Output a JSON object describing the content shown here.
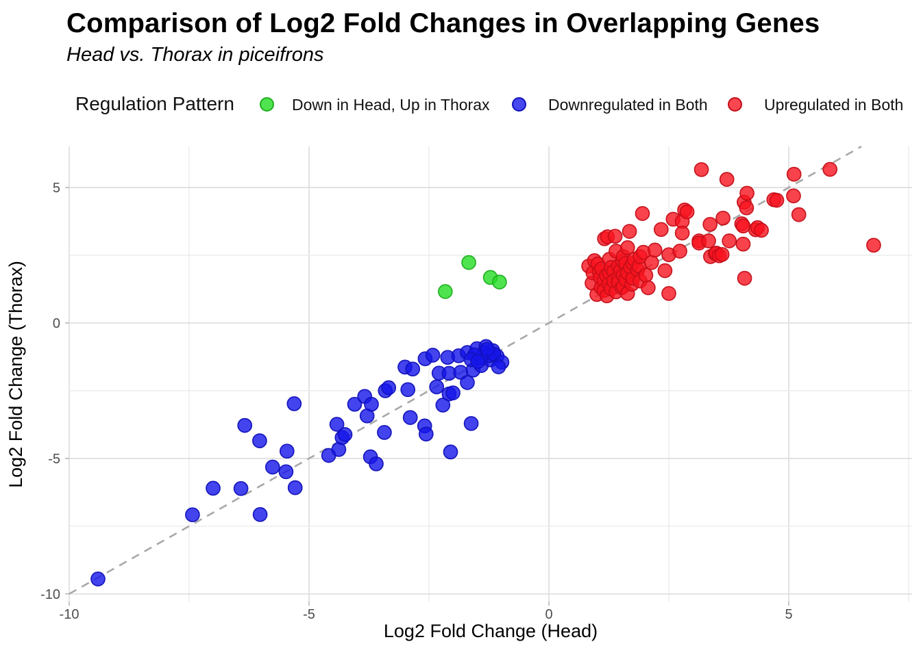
{
  "chart": {
    "title": "Comparison of Log2 Fold Changes in Overlapping Genes",
    "subtitle": "Head vs. Thorax in piceifrons",
    "xlabel": "Log2 Fold Change (Head)",
    "ylabel": "Log2 Fold Change (Thorax)",
    "legend_title": "Regulation Pattern"
  },
  "chart_data": {
    "type": "scatter",
    "title": "Comparison of Log2 Fold Changes in Overlapping Genes",
    "subtitle": "Head vs. Thorax in piceifrons",
    "xlabel": "Log2 Fold Change (Head)",
    "ylabel": "Log2 Fold Change (Thorax)",
    "legend": {
      "title": "Regulation Pattern",
      "position": "top"
    },
    "axes": {
      "xlim": [
        -10.0,
        7.571
      ],
      "ylim": [
        -10.283,
        6.515
      ],
      "x_ticks": [
        -10,
        -5,
        0,
        5
      ],
      "y_ticks": [
        5,
        0,
        -5,
        -10
      ],
      "x_gridlines": [
        -10,
        -7.5,
        -5,
        -2.5,
        0,
        2.5,
        5,
        7.5
      ],
      "y_gridlines": [
        5,
        2.5,
        0,
        -2.5,
        -5,
        -7.5,
        -10
      ],
      "grid_color": "#e4e4e4",
      "tick_text_color": "#4d4d4d"
    },
    "identity_line": {
      "slope": 1,
      "intercept": 0,
      "style": "dashed",
      "color": "#a8a8a8"
    },
    "marker": {
      "radius_px": 10,
      "fill_opacity": 0.8,
      "stroke_opacity": 0.95,
      "stroke_width": 1.7
    },
    "series": [
      {
        "name": "Down in Head, Up in Thorax",
        "color": "#24DC24",
        "edge": "#1FAE1F",
        "legend_fill": "#4FE44F",
        "points": [
          [
            -2.16,
            1.16
          ],
          [
            -1.67,
            2.23
          ],
          [
            -1.22,
            1.68
          ],
          [
            -1.03,
            1.51
          ]
        ]
      },
      {
        "name": "Downregulated in Both",
        "color": "#1515EA",
        "edge": "#1111BB",
        "legend_fill": "#4747F0",
        "points": [
          [
            -9.4,
            -9.45
          ],
          [
            -7.43,
            -7.08
          ],
          [
            -7.0,
            -6.1
          ],
          [
            -6.42,
            -6.11
          ],
          [
            -6.34,
            -3.78
          ],
          [
            -6.03,
            -4.35
          ],
          [
            -6.02,
            -7.07
          ],
          [
            -5.76,
            -5.32
          ],
          [
            -5.48,
            -5.49
          ],
          [
            -5.46,
            -4.73
          ],
          [
            -5.31,
            -2.98
          ],
          [
            -5.29,
            -6.08
          ],
          [
            -4.59,
            -4.89
          ],
          [
            -4.42,
            -3.74
          ],
          [
            -4.38,
            -4.67
          ],
          [
            -4.31,
            -4.23
          ],
          [
            -4.25,
            -4.12
          ],
          [
            -4.05,
            -3.0
          ],
          [
            -3.84,
            -2.71
          ],
          [
            -3.79,
            -3.43
          ],
          [
            -3.72,
            -4.94
          ],
          [
            -3.7,
            -3.0
          ],
          [
            -3.6,
            -5.2
          ],
          [
            -3.43,
            -4.04
          ],
          [
            -3.41,
            -2.5
          ],
          [
            -3.34,
            -2.39
          ],
          [
            -3.0,
            -1.63
          ],
          [
            -2.94,
            -2.46
          ],
          [
            -2.89,
            -3.49
          ],
          [
            -2.84,
            -1.7
          ],
          [
            -2.59,
            -3.8
          ],
          [
            -2.58,
            -1.32
          ],
          [
            -2.56,
            -4.1
          ],
          [
            -2.42,
            -1.19
          ],
          [
            -2.34,
            -2.36
          ],
          [
            -2.29,
            -1.85
          ],
          [
            -2.21,
            -3.03
          ],
          [
            -2.11,
            -1.27
          ],
          [
            -2.08,
            -2.62
          ],
          [
            -2.08,
            -1.86
          ],
          [
            -2.05,
            -4.76
          ],
          [
            -2.0,
            -2.58
          ],
          [
            -1.88,
            -1.21
          ],
          [
            -1.84,
            -1.82
          ],
          [
            -1.7,
            -2.2
          ],
          [
            -1.7,
            -1.09
          ],
          [
            -1.62,
            -3.71
          ],
          [
            -1.58,
            -1.74
          ],
          [
            -1.5,
            -0.95
          ],
          [
            -1.41,
            -1.57
          ],
          [
            -1.31,
            -0.87
          ],
          [
            -1.22,
            -1.36
          ],
          [
            -1.17,
            -1.02
          ],
          [
            -1.08,
            -1.23
          ],
          [
            -1.35,
            -1.1
          ],
          [
            -1.25,
            -1.2
          ],
          [
            -1.15,
            -1.15
          ],
          [
            -1.42,
            -1.28
          ],
          [
            -1.28,
            -0.97
          ],
          [
            -1.55,
            -1.18
          ],
          [
            -1.62,
            -1.35
          ],
          [
            -1.48,
            -1.42
          ],
          [
            -0.98,
            -1.45
          ],
          [
            -1.05,
            -1.62
          ]
        ]
      },
      {
        "name": "Upregulated in Both",
        "color": "#F7141F",
        "edge": "#C40E18",
        "legend_fill": "#F94751",
        "points": [
          [
            0.83,
            2.1
          ],
          [
            0.9,
            1.47
          ],
          [
            0.92,
            1.85
          ],
          [
            0.95,
            2.3
          ],
          [
            1.0,
            1.05
          ],
          [
            1.02,
            2.18
          ],
          [
            1.05,
            1.9
          ],
          [
            1.07,
            1.68
          ],
          [
            1.09,
            1.3
          ],
          [
            1.1,
            2.0
          ],
          [
            1.15,
            1.55
          ],
          [
            1.15,
            1.2
          ],
          [
            1.16,
            3.11
          ],
          [
            1.2,
            1.75
          ],
          [
            1.21,
            1.0
          ],
          [
            1.22,
            3.18
          ],
          [
            1.25,
            1.45
          ],
          [
            1.26,
            2.35
          ],
          [
            1.26,
            1.85
          ],
          [
            1.3,
            2.05
          ],
          [
            1.3,
            1.26
          ],
          [
            1.35,
            1.9
          ],
          [
            1.35,
            1.55
          ],
          [
            1.38,
            3.2
          ],
          [
            1.4,
            2.65
          ],
          [
            1.4,
            1.15
          ],
          [
            1.45,
            2.1
          ],
          [
            1.45,
            1.68
          ],
          [
            1.45,
            1.5
          ],
          [
            1.5,
            1.95
          ],
          [
            1.52,
            1.3
          ],
          [
            1.54,
            2.27
          ],
          [
            1.55,
            2.45
          ],
          [
            1.55,
            1.75
          ],
          [
            1.55,
            1.35
          ],
          [
            1.6,
            2.2
          ],
          [
            1.6,
            1.6
          ],
          [
            1.64,
            2.78
          ],
          [
            1.64,
            1.85
          ],
          [
            1.64,
            1.09
          ],
          [
            1.68,
            3.38
          ],
          [
            1.7,
            2.05
          ],
          [
            1.73,
            1.43
          ],
          [
            1.75,
            2.2
          ],
          [
            1.75,
            1.65
          ],
          [
            1.78,
            2.35
          ],
          [
            1.85,
            1.95
          ],
          [
            1.88,
            2.1
          ],
          [
            1.9,
            2.45
          ],
          [
            1.9,
            1.55
          ],
          [
            1.95,
            4.04
          ],
          [
            1.97,
            2.61
          ],
          [
            2.02,
            1.76
          ],
          [
            2.07,
            1.3
          ],
          [
            2.14,
            2.23
          ],
          [
            2.21,
            2.69
          ],
          [
            2.34,
            3.45
          ],
          [
            2.42,
            1.93
          ],
          [
            2.5,
            2.52
          ],
          [
            2.5,
            1.09
          ],
          [
            2.59,
            3.83
          ],
          [
            2.73,
            2.65
          ],
          [
            2.78,
            3.75
          ],
          [
            2.78,
            3.32
          ],
          [
            2.83,
            4.17
          ],
          [
            2.88,
            4.1
          ],
          [
            3.13,
            3.03
          ],
          [
            3.13,
            2.95
          ],
          [
            3.18,
            5.66
          ],
          [
            3.33,
            3.03
          ],
          [
            3.36,
            3.64
          ],
          [
            3.37,
            2.45
          ],
          [
            3.47,
            2.56
          ],
          [
            3.49,
            2.58
          ],
          [
            3.55,
            2.48
          ],
          [
            3.61,
            2.53
          ],
          [
            3.63,
            3.87
          ],
          [
            3.71,
            5.3
          ],
          [
            3.76,
            3.03
          ],
          [
            4.02,
            3.66
          ],
          [
            4.05,
            3.58
          ],
          [
            4.05,
            2.91
          ],
          [
            4.07,
            4.46
          ],
          [
            4.08,
            1.65
          ],
          [
            4.12,
            4.25
          ],
          [
            4.13,
            4.79
          ],
          [
            4.31,
            3.44
          ],
          [
            4.35,
            3.52
          ],
          [
            4.43,
            3.42
          ],
          [
            4.69,
            4.55
          ],
          [
            4.75,
            4.53
          ],
          [
            5.1,
            4.69
          ],
          [
            5.11,
            5.49
          ],
          [
            5.21,
            4.0
          ],
          [
            5.86,
            5.67
          ],
          [
            6.77,
            2.87
          ]
        ]
      }
    ]
  }
}
